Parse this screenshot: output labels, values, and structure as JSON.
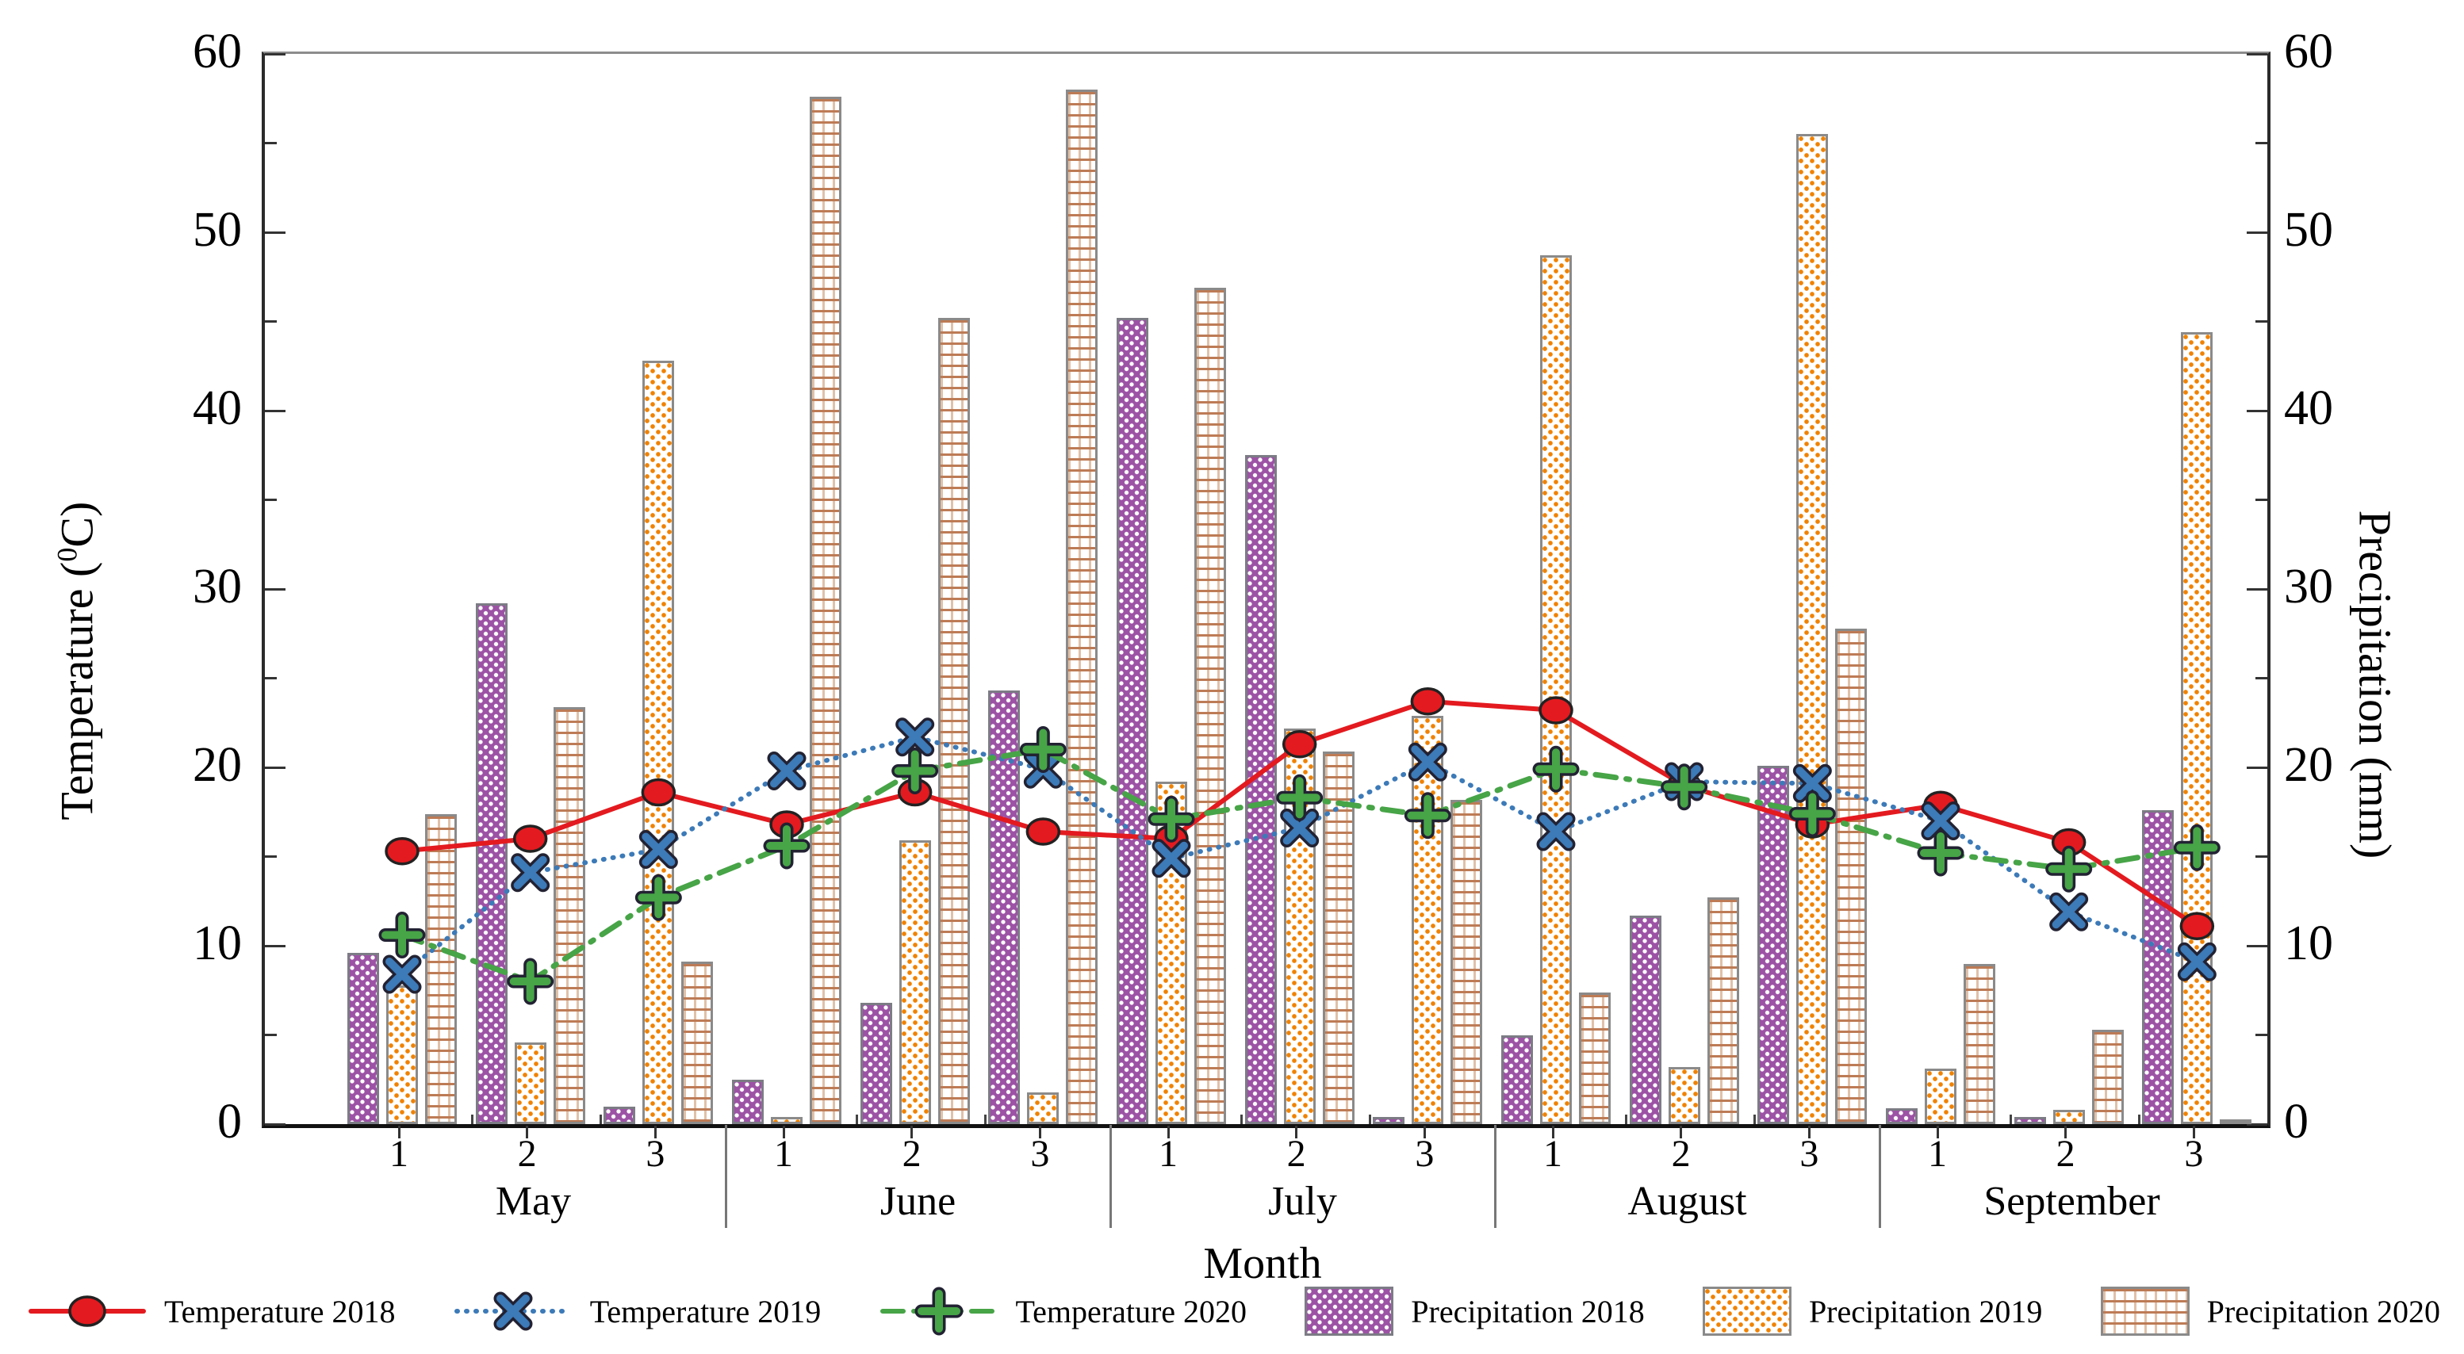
{
  "chart_data": {
    "type": "combo-bar-line",
    "title": "",
    "x_axis": {
      "title": "Month",
      "months": [
        "May",
        "June",
        "July",
        "August",
        "September"
      ],
      "periods": [
        "1",
        "2",
        "3"
      ]
    },
    "y_left": {
      "title_pre": "Temperature (",
      "title_sup": "0",
      "title_post": "C)",
      "min": 0,
      "max": 60,
      "major_ticks": [
        0,
        10,
        20,
        30,
        40,
        50,
        60
      ],
      "minor_ticks": [
        5,
        15,
        25,
        35,
        45,
        55
      ]
    },
    "y_right": {
      "title": "Precipitation (mm)",
      "min": 0,
      "max": 60,
      "major_ticks": [
        0,
        10,
        20,
        30,
        40,
        50,
        60
      ],
      "minor_ticks": [
        5,
        15,
        25,
        35,
        45,
        55
      ]
    },
    "temperature_series": [
      {
        "name": "Temperature 2018",
        "color": "#e31a1f",
        "line": "solid",
        "marker": "circle",
        "values": [
          15.3,
          16.0,
          18.6,
          16.8,
          18.6,
          16.4,
          16.0,
          21.3,
          23.7,
          23.2,
          19.0,
          16.8,
          17.9,
          15.8,
          11.1
        ]
      },
      {
        "name": "Temperature 2019",
        "color": "#3c7ab8",
        "line": "dotted",
        "marker": "x",
        "values": [
          8.4,
          14.1,
          15.4,
          19.8,
          21.7,
          19.9,
          14.9,
          16.6,
          20.3,
          16.4,
          19.2,
          19.1,
          17.0,
          11.9,
          9.1
        ]
      },
      {
        "name": "Temperature 2020",
        "color": "#47a447",
        "line": "dashdot",
        "marker": "plus",
        "values": [
          10.6,
          8.0,
          12.7,
          15.6,
          19.8,
          21.0,
          17.1,
          18.3,
          17.3,
          19.9,
          18.9,
          17.4,
          15.2,
          14.3,
          15.5
        ]
      }
    ],
    "precipitation_series": [
      {
        "name": "Precipitation 2018",
        "pattern": "purple-dots",
        "values": [
          9.6,
          29.2,
          1.0,
          2.5,
          6.8,
          24.3,
          45.2,
          37.5,
          0.4,
          5.0,
          11.7,
          20.1,
          0.9,
          0.4,
          17.6
        ]
      },
      {
        "name": "Precipitation 2019",
        "pattern": "orange-dots",
        "values": [
          7.8,
          4.6,
          42.8,
          0.4,
          15.9,
          1.8,
          19.2,
          22.2,
          22.9,
          48.7,
          3.2,
          55.5,
          3.1,
          0.8,
          44.4
        ]
      },
      {
        "name": "Precipitation 2020",
        "pattern": "tan-grid",
        "values": [
          17.4,
          23.4,
          9.1,
          57.6,
          45.2,
          58.0,
          46.9,
          20.9,
          18.2,
          7.4,
          12.7,
          27.8,
          9.0,
          5.3,
          0.2
        ]
      }
    ]
  }
}
